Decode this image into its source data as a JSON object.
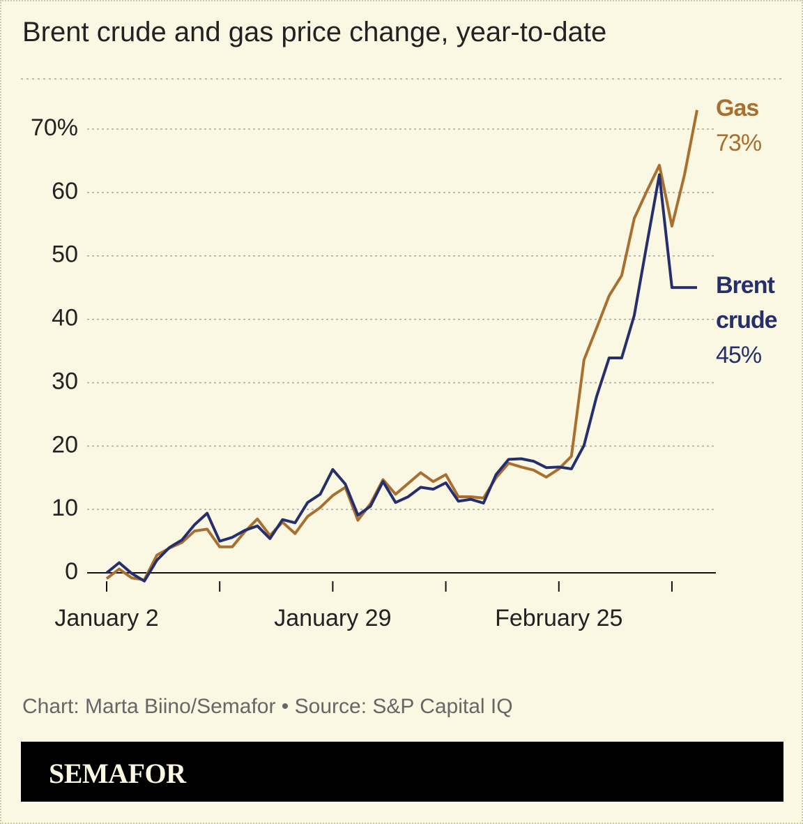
{
  "title": "Brent crude and gas price change, year-to-date",
  "credit": "Chart: Marta Biino/Semafor • Source: S&P Capital IQ",
  "brand": "SEMAFOR",
  "chart_data": {
    "type": "line",
    "categories": [
      "January 2",
      null,
      null,
      null,
      null,
      null,
      null,
      null,
      null,
      null,
      null,
      null,
      null,
      null,
      null,
      null,
      null,
      null,
      "January 29",
      null,
      null,
      null,
      null,
      null,
      null,
      null,
      null,
      null,
      null,
      null,
      null,
      null,
      null,
      null,
      null,
      null,
      "February 25",
      null,
      null,
      null,
      null,
      null,
      null,
      null,
      null,
      null,
      null,
      null
    ],
    "series": [
      {
        "name": "Gas",
        "color": "#a86f2f",
        "end_label": "73%",
        "values": [
          -0.9,
          0.6,
          -0.8,
          -1.1,
          2.8,
          3.9,
          4.8,
          6.6,
          6.9,
          4.1,
          4.1,
          6.5,
          8.5,
          5.9,
          8.0,
          6.2,
          8.9,
          10.3,
          12.2,
          13.5,
          8.3,
          10.9,
          14.7,
          12.4,
          14.1,
          15.8,
          14.4,
          15.5,
          12.0,
          12.0,
          11.8,
          15.0,
          17.3,
          16.7,
          16.2,
          15.1,
          16.4,
          18.4,
          33.6,
          38.6,
          43.7,
          46.9,
          55.9,
          60.2,
          64.3,
          54.7,
          62.8,
          73
        ]
      },
      {
        "name": "Brent crude",
        "color": "#262f6e",
        "end_label": "45%",
        "values": [
          0,
          1.6,
          -0.1,
          -1.3,
          2.0,
          4.0,
          5.2,
          7.6,
          9.4,
          5.0,
          5.6,
          6.7,
          7.4,
          5.4,
          8.4,
          7.9,
          11.1,
          12.4,
          16.3,
          14.0,
          9.1,
          10.5,
          14.4,
          11.1,
          12.0,
          13.5,
          13.2,
          14.2,
          11.3,
          11.6,
          11.0,
          15.5,
          17.9,
          18.0,
          17.6,
          16.6,
          16.7,
          16.4,
          20.1,
          27.8,
          33.9,
          33.9,
          40.6,
          51.8,
          62.8,
          45,
          45,
          45
        ]
      }
    ],
    "ylim": [
      -3,
      75
    ],
    "yticks": [
      0,
      10,
      20,
      30,
      40,
      50,
      60,
      {
        "value": 70,
        "label": "70%"
      }
    ],
    "grid": true
  }
}
